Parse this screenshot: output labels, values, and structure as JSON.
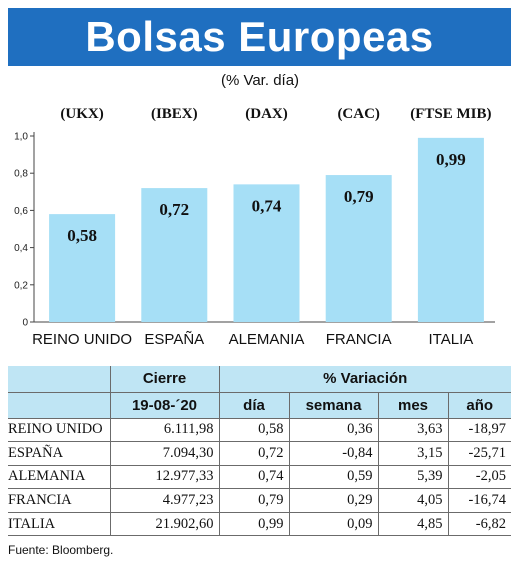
{
  "header": {
    "title": "Bolsas Europeas",
    "subtitle": "(% Var. día)"
  },
  "chart_data": {
    "type": "bar",
    "categories": [
      "REINO UNIDO",
      "ESPAÑA",
      "ALEMANIA",
      "FRANCIA",
      "ITALIA"
    ],
    "indices": [
      "(UKX)",
      "(IBEX)",
      "(DAX)",
      "(CAC)",
      "(FTSE MIB)"
    ],
    "values": [
      0.58,
      0.72,
      0.74,
      0.79,
      0.99
    ],
    "value_labels": [
      "0,58",
      "0,72",
      "0,74",
      "0,79",
      "0,99"
    ],
    "yticks": [
      0,
      0.2,
      0.4,
      0.6,
      0.8,
      1.0
    ],
    "ytick_labels": [
      "0",
      "0,2",
      "0,4",
      "0,6",
      "0,8",
      "1,0"
    ],
    "ylim": [
      0,
      1.0
    ],
    "grid": false,
    "colors": {
      "bar": "#a6dff6",
      "highlight": "#1f6fc0"
    }
  },
  "table": {
    "header_cierre": "Cierre",
    "header_variacion": "% Variación",
    "date": "19-08-´20",
    "columns": [
      "día",
      "semana",
      "mes",
      "año"
    ],
    "rows": [
      {
        "name": "REINO UNIDO",
        "cierre": "6.111,98",
        "dia": "0,58",
        "semana": "0,36",
        "mes": "3,63",
        "ano": "-18,97"
      },
      {
        "name": "ESPAÑA",
        "cierre": "7.094,30",
        "dia": "0,72",
        "semana": "-0,84",
        "mes": "3,15",
        "ano": "-25,71"
      },
      {
        "name": "ALEMANIA",
        "cierre": "12.977,33",
        "dia": "0,74",
        "semana": "0,59",
        "mes": "5,39",
        "ano": "-2,05"
      },
      {
        "name": "FRANCIA",
        "cierre": "4.977,23",
        "dia": "0,79",
        "semana": "0,29",
        "mes": "4,05",
        "ano": "-16,74"
      },
      {
        "name": "ITALIA",
        "cierre": "21.902,60",
        "dia": "0,99",
        "semana": "0,09",
        "mes": "4,85",
        "ano": "-6,82"
      }
    ]
  },
  "footer": {
    "source": "Fuente: Bloomberg."
  }
}
